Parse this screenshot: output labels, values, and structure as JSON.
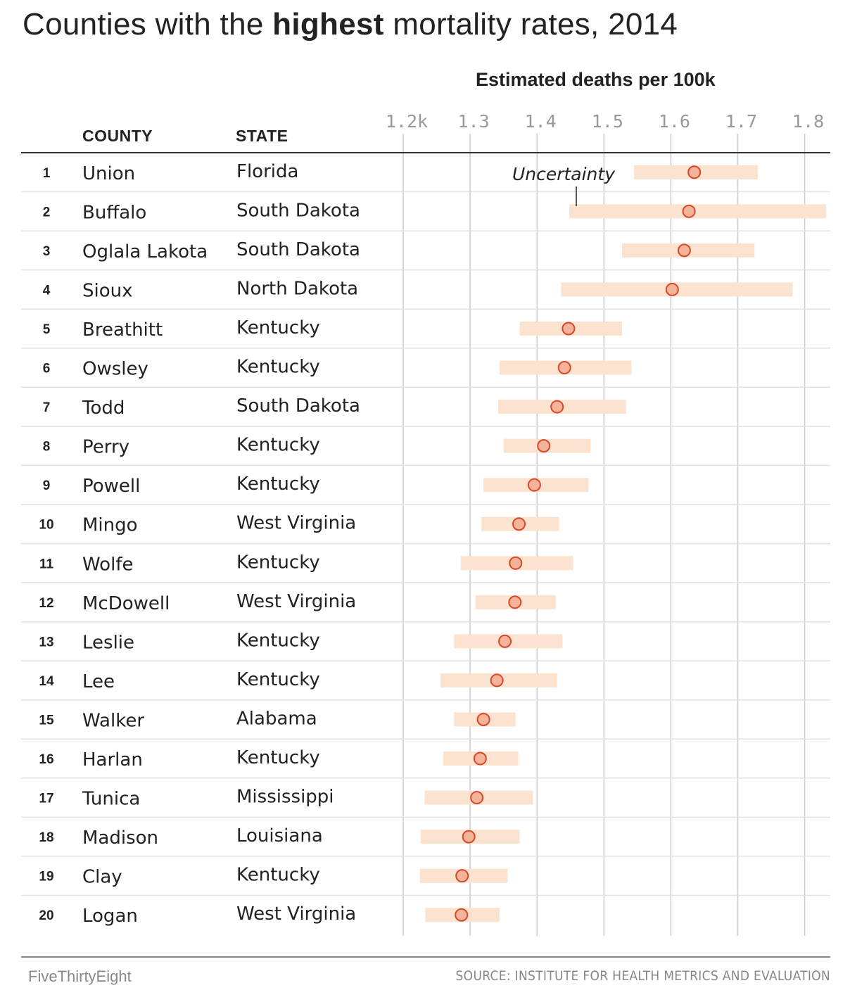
{
  "title": {
    "prefix": "Counties with the ",
    "emphasis": "highest",
    "suffix": " mortality rates, 2014"
  },
  "axis_title": "Estimated deaths per 100k",
  "columns": {
    "county": "COUNTY",
    "state": "STATE"
  },
  "annotation": "Uncertainty",
  "brand": "FiveThirtyEight",
  "source": "SOURCE: INSTITUTE FOR HEALTH METRICS AND EVALUATION",
  "colors": {
    "range": "#fbe3d0",
    "point_fill": "#f3b49a",
    "point_stroke": "#d9472b",
    "grid": "#cccccc"
  },
  "chart_data": {
    "type": "scatter",
    "xlim": [
      1.2,
      1.83
    ],
    "ticks": [
      1.2,
      1.3,
      1.4,
      1.5,
      1.6,
      1.7,
      1.8
    ],
    "tick_labels": [
      "1.2k",
      "1.3",
      "1.4",
      "1.5",
      "1.6",
      "1.7",
      "1.8"
    ],
    "rows": [
      {
        "rank": "1",
        "county": "Union",
        "state": "Florida",
        "value": 1.635,
        "low": 1.545,
        "high": 1.73
      },
      {
        "rank": "2",
        "county": "Buffalo",
        "state": "South Dakota",
        "value": 1.627,
        "low": 1.448,
        "high": 1.832
      },
      {
        "rank": "3",
        "county": "Oglala Lakota",
        "state": "South Dakota",
        "value": 1.62,
        "low": 1.527,
        "high": 1.725
      },
      {
        "rank": "4",
        "county": "Sioux",
        "state": "North Dakota",
        "value": 1.602,
        "low": 1.436,
        "high": 1.782
      },
      {
        "rank": "5",
        "county": "Breathitt",
        "state": "Kentucky",
        "value": 1.447,
        "low": 1.374,
        "high": 1.527
      },
      {
        "rank": "6",
        "county": "Owsley",
        "state": "Kentucky",
        "value": 1.441,
        "low": 1.344,
        "high": 1.541
      },
      {
        "rank": "7",
        "county": "Todd",
        "state": "South Dakota",
        "value": 1.43,
        "low": 1.342,
        "high": 1.533
      },
      {
        "rank": "8",
        "county": "Perry",
        "state": "Kentucky",
        "value": 1.41,
        "low": 1.35,
        "high": 1.48
      },
      {
        "rank": "9",
        "county": "Powell",
        "state": "Kentucky",
        "value": 1.396,
        "low": 1.32,
        "high": 1.477
      },
      {
        "rank": "10",
        "county": "Mingo",
        "state": "West Virginia",
        "value": 1.373,
        "low": 1.317,
        "high": 1.433
      },
      {
        "rank": "11",
        "county": "Wolfe",
        "state": "Kentucky",
        "value": 1.368,
        "low": 1.286,
        "high": 1.454
      },
      {
        "rank": "12",
        "county": "McDowell",
        "state": "West Virginia",
        "value": 1.367,
        "low": 1.308,
        "high": 1.428
      },
      {
        "rank": "13",
        "county": "Leslie",
        "state": "Kentucky",
        "value": 1.352,
        "low": 1.276,
        "high": 1.438
      },
      {
        "rank": "14",
        "county": "Lee",
        "state": "Kentucky",
        "value": 1.34,
        "low": 1.256,
        "high": 1.43
      },
      {
        "rank": "15",
        "county": "Walker",
        "state": "Alabama",
        "value": 1.32,
        "low": 1.276,
        "high": 1.368
      },
      {
        "rank": "16",
        "county": "Harlan",
        "state": "Kentucky",
        "value": 1.315,
        "low": 1.26,
        "high": 1.372
      },
      {
        "rank": "17",
        "county": "Tunica",
        "state": "Mississippi",
        "value": 1.31,
        "low": 1.232,
        "high": 1.394
      },
      {
        "rank": "18",
        "county": "Madison",
        "state": "Louisiana",
        "value": 1.298,
        "low": 1.226,
        "high": 1.374
      },
      {
        "rank": "19",
        "county": "Clay",
        "state": "Kentucky",
        "value": 1.288,
        "low": 1.225,
        "high": 1.356
      },
      {
        "rank": "20",
        "county": "Logan",
        "state": "West Virginia",
        "value": 1.287,
        "low": 1.233,
        "high": 1.344
      }
    ]
  }
}
